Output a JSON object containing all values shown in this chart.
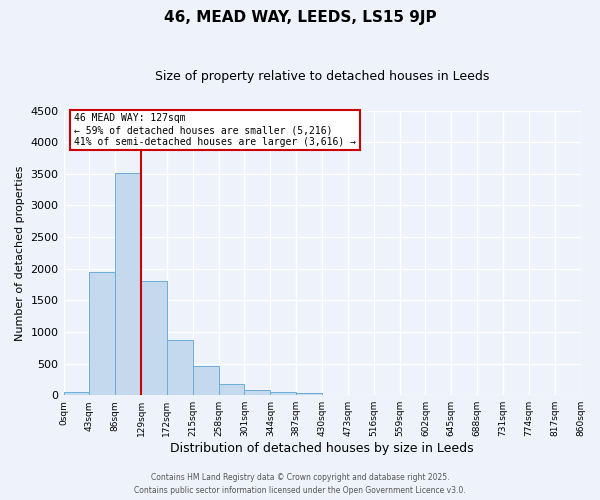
{
  "title": "46, MEAD WAY, LEEDS, LS15 9JP",
  "subtitle": "Size of property relative to detached houses in Leeds",
  "xlabel": "Distribution of detached houses by size in Leeds",
  "ylabel": "Number of detached properties",
  "bin_labels": [
    "0sqm",
    "43sqm",
    "86sqm",
    "129sqm",
    "172sqm",
    "215sqm",
    "258sqm",
    "301sqm",
    "344sqm",
    "387sqm",
    "430sqm",
    "473sqm",
    "516sqm",
    "559sqm",
    "602sqm",
    "645sqm",
    "688sqm",
    "731sqm",
    "774sqm",
    "817sqm",
    "860sqm"
  ],
  "bar_heights": [
    50,
    1950,
    3520,
    1800,
    870,
    460,
    175,
    90,
    55,
    30,
    10,
    5,
    0,
    0,
    0,
    0,
    0,
    0,
    0,
    0
  ],
  "bar_color": "#c5d9ee",
  "bar_edge_color": "#6aaed6",
  "red_line_bin": 3,
  "annotation_title": "46 MEAD WAY: 127sqm",
  "annotation_line1": "← 59% of detached houses are smaller (5,216)",
  "annotation_line2": "41% of semi-detached houses are larger (3,616) →",
  "annotation_box_color": "#ffffff",
  "annotation_box_edge": "#cc0000",
  "red_line_color": "#cc0000",
  "ylim": [
    0,
    4500
  ],
  "yticks": [
    0,
    500,
    1000,
    1500,
    2000,
    2500,
    3000,
    3500,
    4000,
    4500
  ],
  "footer1": "Contains HM Land Registry data © Crown copyright and database right 2025.",
  "footer2": "Contains public sector information licensed under the Open Government Licence v3.0.",
  "bg_color": "#eef2fb",
  "grid_color": "#ffffff",
  "title_fontsize": 11,
  "subtitle_fontsize": 9
}
